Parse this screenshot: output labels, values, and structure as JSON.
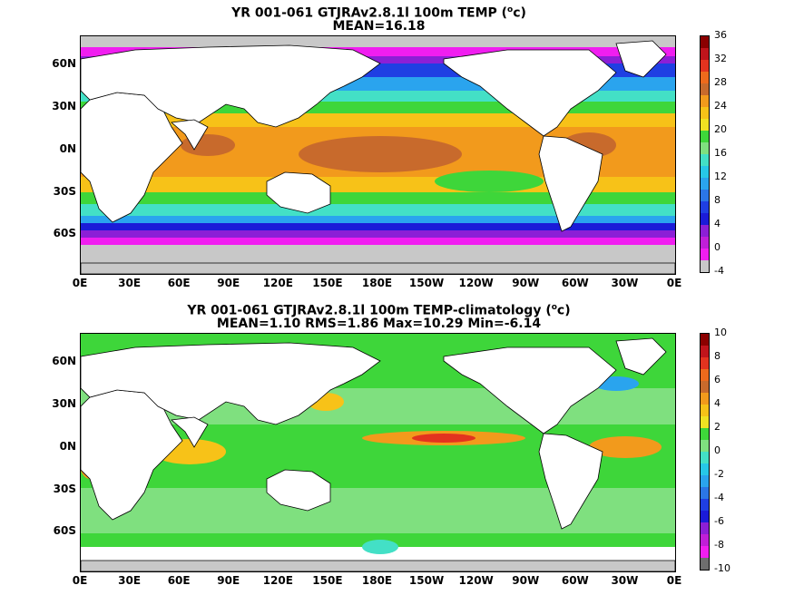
{
  "chart_data": [
    {
      "type": "heatmap",
      "title_main": "YR 001-061 GTJRAv2.8.1l 100m TEMP (",
      "title_sup": "o",
      "title_end": "c)",
      "subtitle": "MEAN=16.18",
      "y_ticks": [
        "60N",
        "30N",
        "0N",
        "30S",
        "60S"
      ],
      "x_ticks": [
        "0E",
        "30E",
        "60E",
        "90E",
        "120E",
        "150E",
        "180E",
        "150W",
        "120W",
        "90W",
        "60W",
        "30W",
        "0E"
      ],
      "colorbar": {
        "labels": [
          "36",
          "32",
          "28",
          "24",
          "20",
          "16",
          "12",
          "8",
          "4",
          "0",
          "-4"
        ],
        "colors": [
          "#8b0000",
          "#c0141b",
          "#e3331f",
          "#ee6a1c",
          "#c86a2c",
          "#f29a1c",
          "#f7c218",
          "#f0e222",
          "#3ed63a",
          "#7fe07f",
          "#43e0c6",
          "#27c8e8",
          "#2aa4ee",
          "#2b76e6",
          "#1f3fe3",
          "#1b1bd8",
          "#8c1fd6",
          "#c01fd8",
          "#f01ef0",
          "#c8c8c8"
        ],
        "min": -4,
        "max": 36
      }
    },
    {
      "type": "heatmap",
      "title_main": "YR 001-061 GTJRAv2.8.1l 100m TEMP-climatology (",
      "title_sup": "o",
      "title_end": "c)",
      "subtitle": "MEAN=1.10   RMS=1.86   Max=10.29   Min=-6.14",
      "y_ticks": [
        "60N",
        "30N",
        "0N",
        "30S",
        "60S"
      ],
      "x_ticks": [
        "0E",
        "30E",
        "60E",
        "90E",
        "120E",
        "150E",
        "180E",
        "150W",
        "120W",
        "90W",
        "60W",
        "30W",
        "0E"
      ],
      "colorbar": {
        "labels": [
          "10",
          "8",
          "6",
          "4",
          "2",
          "0",
          "-2",
          "-4",
          "-6",
          "-8",
          "-10"
        ],
        "colors": [
          "#8b0000",
          "#c0141b",
          "#e3331f",
          "#ee6a1c",
          "#c86a2c",
          "#f29a1c",
          "#f7c218",
          "#f0e222",
          "#3ed63a",
          "#7fe07f",
          "#43e0c6",
          "#27c8e8",
          "#2aa4ee",
          "#2b76e6",
          "#1f3fe3",
          "#1b1bd8",
          "#8c1fd6",
          "#c01fd8",
          "#f01ef0",
          "#6e6e6e"
        ],
        "min": -10,
        "max": 10
      }
    }
  ],
  "colors": {
    "land": "#ffffff",
    "missing": "#c8c8c8"
  }
}
